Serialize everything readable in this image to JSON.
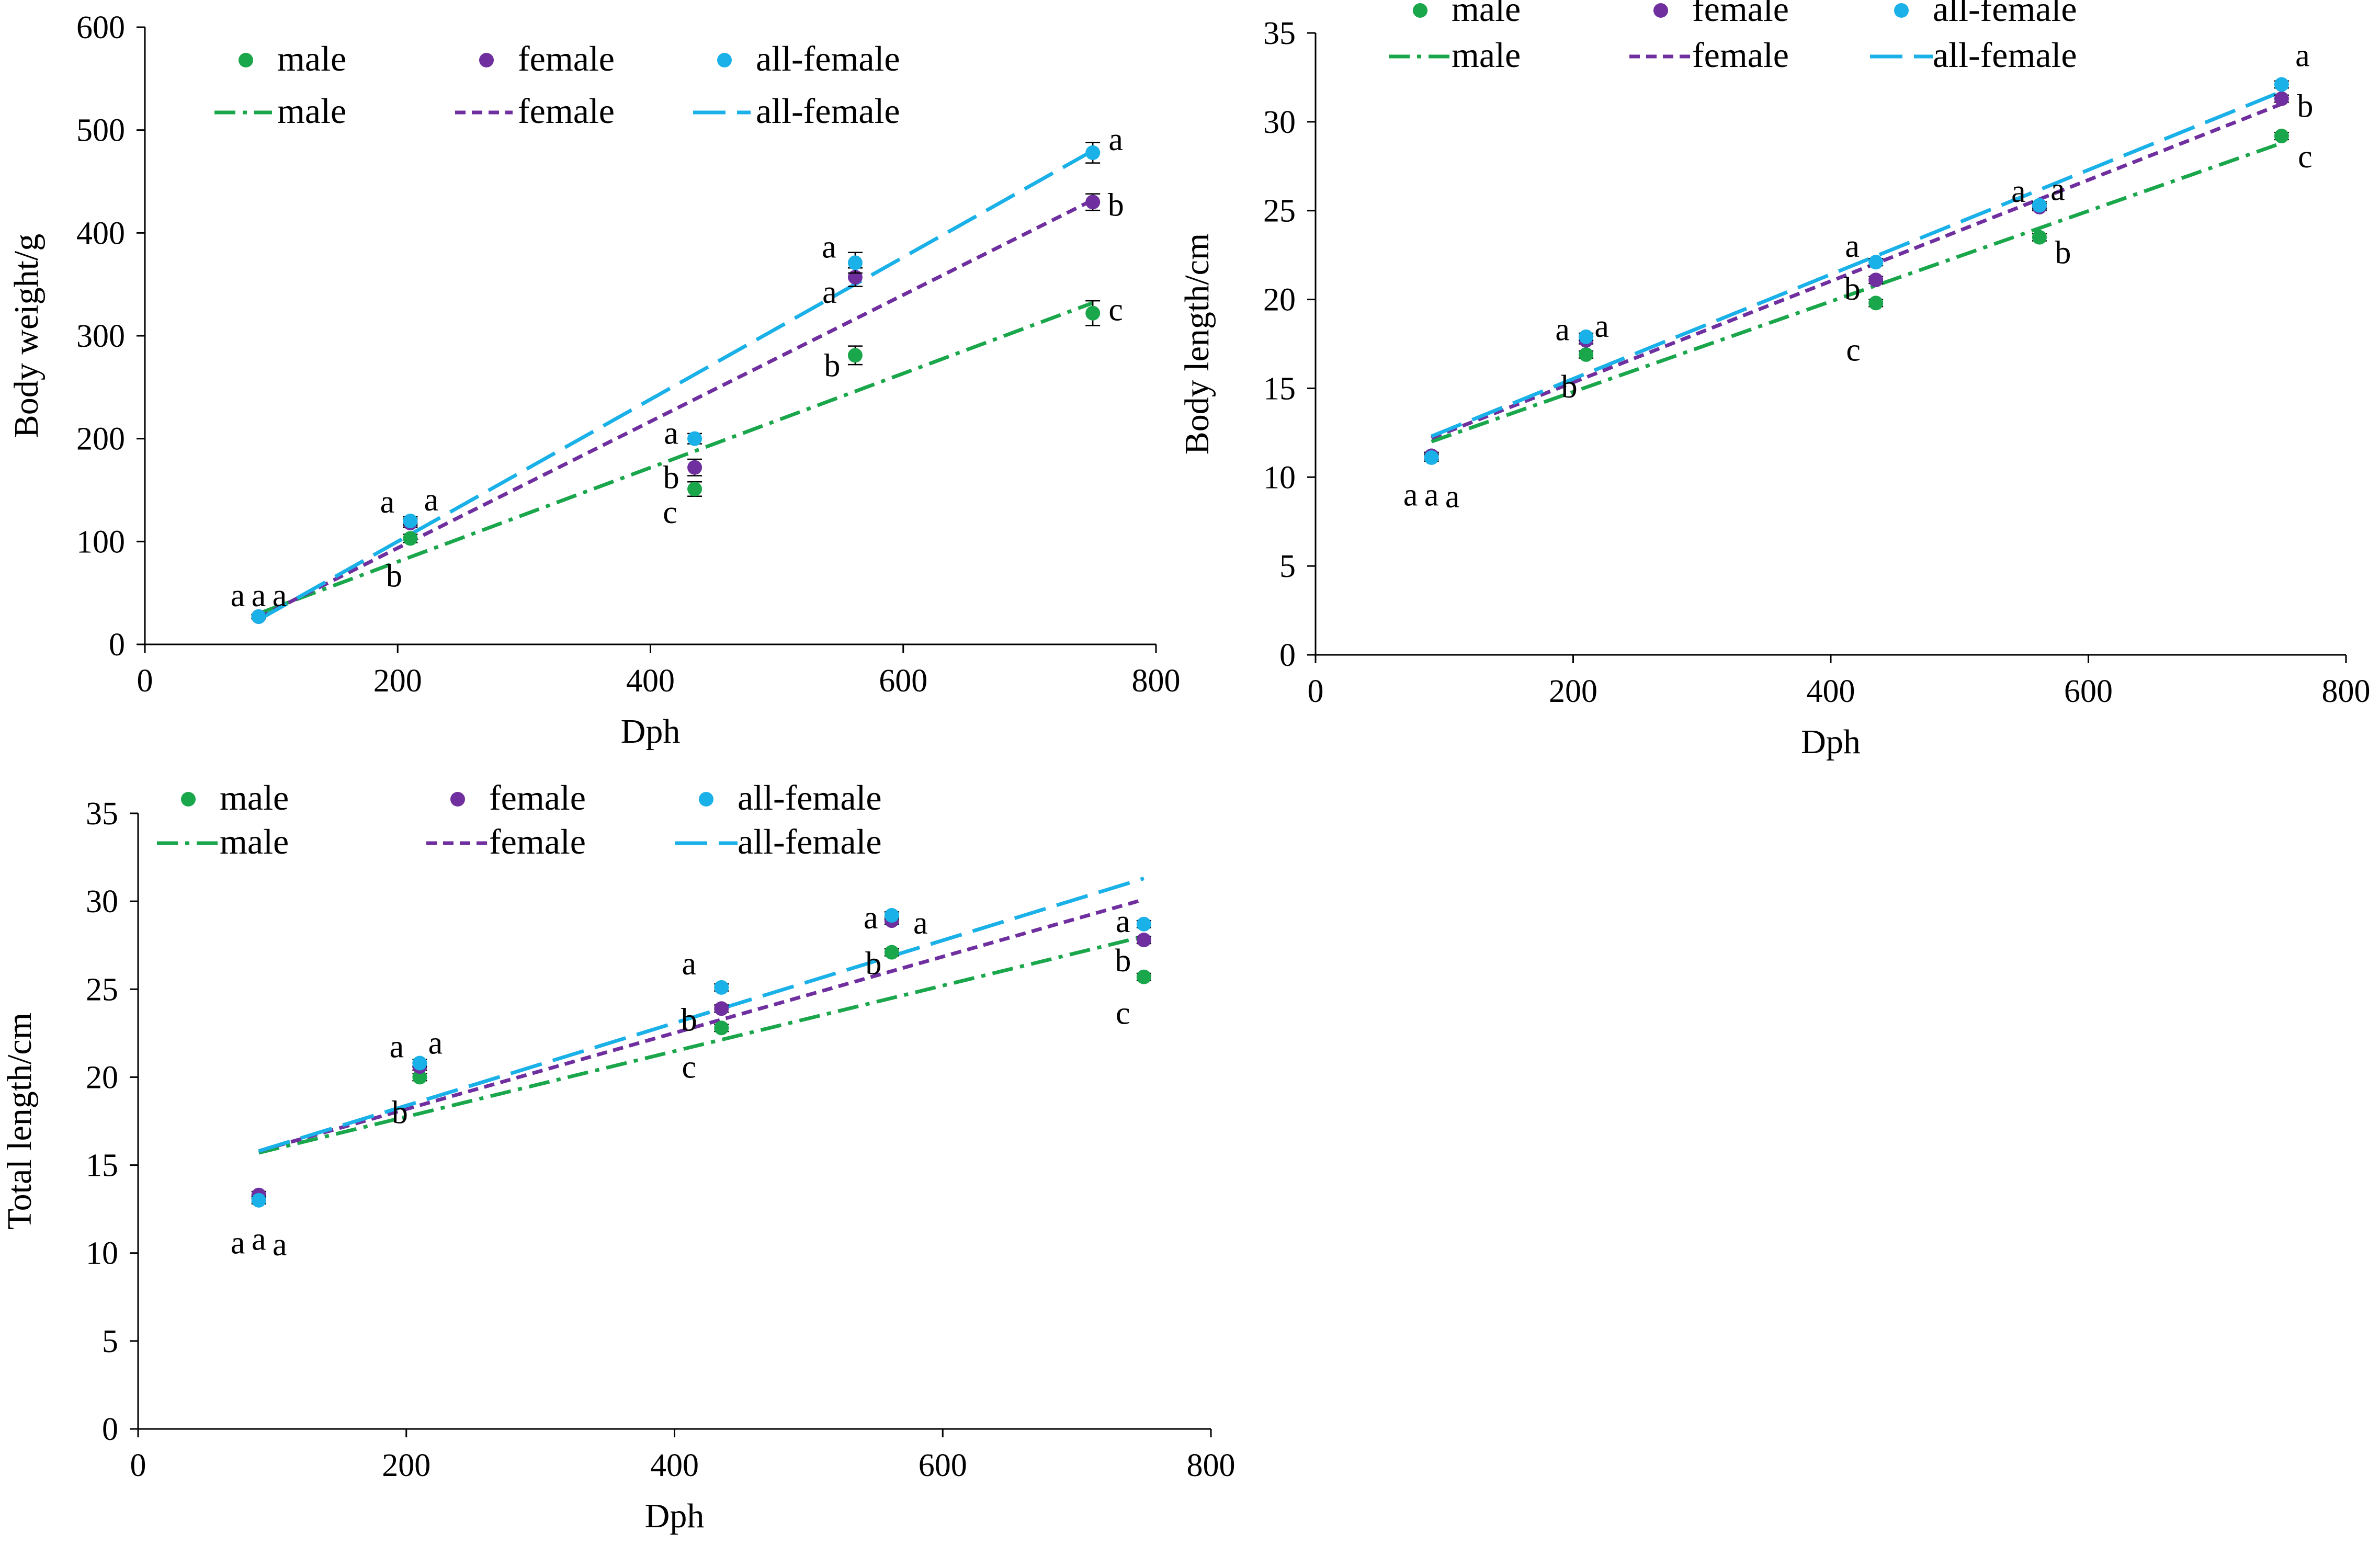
{
  "colors": {
    "male": "#1aa64b",
    "female": "#6f2f9f",
    "all-female": "#1ab0e8"
  },
  "chart_data": [
    {
      "type": "scatter",
      "title": "",
      "xlabel": "Dph",
      "ylabel": "Body weight/g",
      "xlim": [
        0,
        800
      ],
      "ylim": [
        0,
        600
      ],
      "xticks": [
        0,
        200,
        400,
        600,
        800
      ],
      "yticks": [
        0,
        100,
        200,
        300,
        400,
        500,
        600
      ],
      "legend_location": "top-left",
      "x": [
        90,
        210,
        435,
        562,
        750
      ],
      "series": [
        {
          "name": "male",
          "color_key": "male",
          "values": [
            27,
            103,
            151,
            281,
            322
          ],
          "errors": [
            2,
            4,
            7,
            9,
            12
          ],
          "letters": [
            "a",
            "b",
            "c",
            "b",
            "c"
          ],
          "trend": {
            "name": "male",
            "style": "dash-dot",
            "x": [
              90,
              750
            ],
            "y": [
              30,
              332
            ]
          }
        },
        {
          "name": "female",
          "color_key": "female",
          "values": [
            27,
            118,
            172,
            357,
            430
          ],
          "errors": [
            2,
            4,
            8,
            9,
            8
          ],
          "letters": [
            "a",
            "a",
            "b",
            "a",
            "b"
          ],
          "trend": {
            "name": "female",
            "style": "short-dash",
            "x": [
              90,
              750
            ],
            "y": [
              26,
              432
            ]
          }
        },
        {
          "name": "all-female",
          "color_key": "all-female",
          "values": [
            27,
            120,
            200,
            371,
            478
          ],
          "errors": [
            2,
            4,
            5,
            10,
            10
          ],
          "letters": [
            "a",
            "a",
            "a",
            "a",
            "a"
          ],
          "trend": {
            "name": "all-female",
            "style": "long-dash",
            "x": [
              90,
              750
            ],
            "y": [
              24,
              480
            ]
          }
        }
      ]
    },
    {
      "type": "scatter",
      "title": "",
      "xlabel": "Dph",
      "ylabel": "Body length/cm",
      "xlim": [
        0,
        800
      ],
      "ylim": [
        0,
        35
      ],
      "xticks": [
        0,
        200,
        400,
        600,
        800
      ],
      "yticks": [
        0,
        5,
        10,
        15,
        20,
        25,
        30,
        35
      ],
      "legend_location": "top-left",
      "x": [
        90,
        210,
        435,
        562,
        750
      ],
      "series": [
        {
          "name": "male",
          "color_key": "male",
          "values": [
            11.2,
            16.9,
            19.8,
            23.5,
            29.2
          ],
          "errors": [
            0.2,
            0.2,
            0.2,
            0.2,
            0.2
          ],
          "letters": [
            "a",
            "b",
            "c",
            "b",
            "c"
          ],
          "trend": {
            "name": "male",
            "style": "dash-dot",
            "x": [
              90,
              750
            ],
            "y": [
              12.0,
              28.8
            ]
          }
        },
        {
          "name": "female",
          "color_key": "female",
          "values": [
            11.2,
            17.7,
            21.1,
            25.2,
            31.3
          ],
          "errors": [
            0.2,
            0.2,
            0.2,
            0.2,
            0.2
          ],
          "letters": [
            "a",
            "a",
            "b",
            "a",
            "b"
          ],
          "trend": {
            "name": "female",
            "style": "short-dash",
            "x": [
              90,
              750
            ],
            "y": [
              12.2,
              31.0
            ]
          }
        },
        {
          "name": "all-female",
          "color_key": "all-female",
          "values": [
            11.1,
            17.9,
            22.1,
            25.3,
            32.1
          ],
          "errors": [
            0.2,
            0.2,
            0.2,
            0.2,
            0.2
          ],
          "letters": [
            "a",
            "a",
            "a",
            "a",
            "a"
          ],
          "trend": {
            "name": "all-female",
            "style": "long-dash",
            "x": [
              90,
              750
            ],
            "y": [
              12.3,
              31.7
            ]
          }
        }
      ]
    },
    {
      "type": "scatter",
      "title": "",
      "xlabel": "Dph",
      "ylabel": "Total length/cm",
      "xlim": [
        0,
        800
      ],
      "ylim": [
        0,
        35
      ],
      "xticks": [
        0,
        200,
        400,
        600,
        800
      ],
      "yticks": [
        0,
        5,
        10,
        15,
        20,
        25,
        30,
        35
      ],
      "legend_location": "top-left",
      "x": [
        90,
        210,
        435,
        562,
        750
      ],
      "series": [
        {
          "name": "male",
          "color_key": "male",
          "values": [
            13.1,
            20.0,
            22.8,
            27.1,
            25.7
          ],
          "errors": [
            0.2,
            0.2,
            0.2,
            0.2,
            0.2
          ],
          "letters": [
            "a",
            "b",
            "c",
            "b",
            "c"
          ],
          "trend": {
            "name": "male",
            "style": "dash-dot",
            "x": [
              90,
              750
            ],
            "y": [
              15.7,
              28.0
            ]
          }
        },
        {
          "name": "female",
          "color_key": "female",
          "values": [
            13.3,
            20.6,
            23.9,
            28.9,
            27.8
          ],
          "errors": [
            0.2,
            0.2,
            0.2,
            0.2,
            0.2
          ],
          "letters": [
            "a",
            "a",
            "b",
            "a",
            "b"
          ],
          "trend": {
            "name": "female",
            "style": "short-dash",
            "x": [
              90,
              750
            ],
            "y": [
              15.8,
              30.1
            ]
          }
        },
        {
          "name": "all-female",
          "color_key": "all-female",
          "values": [
            13.0,
            20.8,
            25.1,
            29.2,
            28.7
          ],
          "errors": [
            0.2,
            0.2,
            0.2,
            0.2,
            0.2
          ],
          "letters": [
            "a",
            "a",
            "a",
            "a",
            "a"
          ],
          "trend": {
            "name": "all-female",
            "style": "long-dash",
            "x": [
              90,
              750
            ],
            "y": [
              15.8,
              31.3
            ]
          }
        }
      ]
    }
  ]
}
